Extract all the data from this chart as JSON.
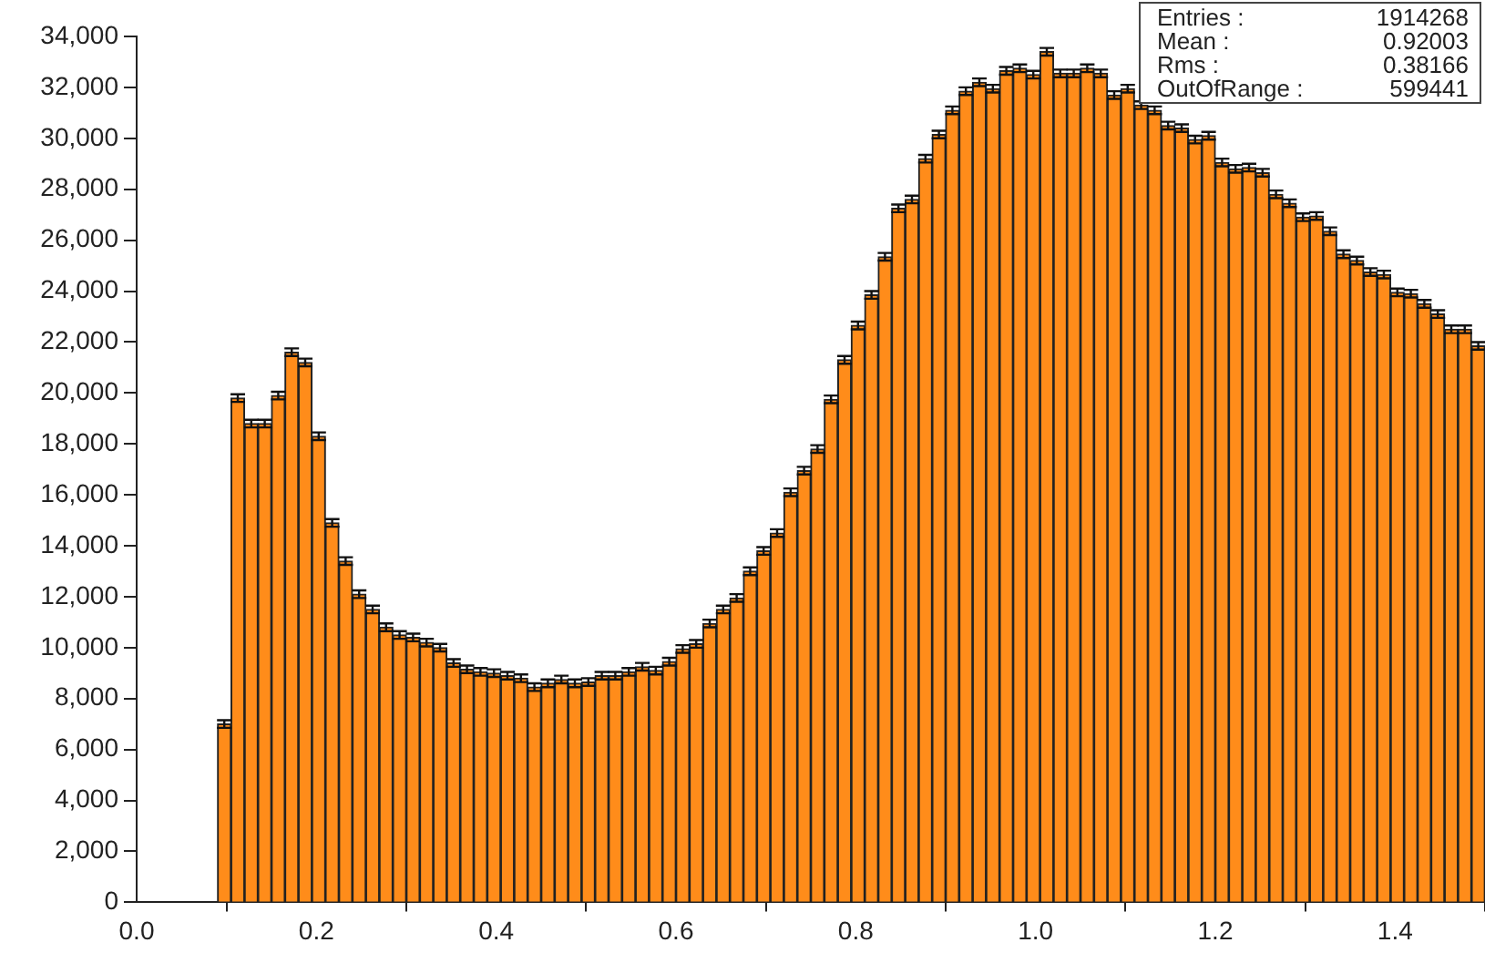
{
  "chart_data": {
    "type": "histogram",
    "color": "#ff8c1a",
    "bins": [
      0,
      0.015,
      0.03,
      0.045,
      0.06,
      0.075,
      0.09,
      0.105,
      0.12,
      0.135,
      0.15,
      0.165,
      0.18,
      0.195,
      0.21,
      0.225,
      0.24,
      0.255,
      0.27,
      0.285,
      0.3,
      0.315,
      0.33,
      0.345,
      0.36,
      0.375,
      0.39,
      0.405,
      0.42,
      0.435,
      0.45,
      0.465,
      0.48,
      0.495,
      0.51,
      0.525,
      0.54,
      0.555,
      0.57,
      0.585,
      0.6,
      0.615,
      0.63,
      0.645,
      0.66,
      0.675,
      0.69,
      0.705,
      0.72,
      0.735,
      0.75,
      0.765,
      0.78,
      0.795,
      0.81,
      0.825,
      0.84,
      0.855,
      0.87,
      0.885,
      0.9,
      0.915,
      0.93,
      0.945,
      0.96,
      0.975,
      0.99,
      1.005,
      1.02,
      1.035,
      1.05,
      1.065,
      1.08,
      1.095,
      1.11,
      1.125,
      1.14,
      1.155,
      1.17,
      1.185,
      1.2,
      1.215,
      1.23,
      1.245,
      1.26,
      1.275,
      1.29,
      1.305,
      1.32,
      1.335,
      1.35,
      1.365,
      1.38,
      1.395,
      1.41,
      1.425,
      1.44,
      1.455,
      1.47,
      1.485,
      1.5
    ],
    "values": [
      0,
      0,
      0,
      0,
      0,
      0,
      7000,
      19800,
      18800,
      18800,
      19900,
      21600,
      21200,
      18300,
      14900,
      13400,
      12100,
      11500,
      10800,
      10500,
      10400,
      10200,
      10000,
      9400,
      9150,
      9050,
      9000,
      8900,
      8800,
      8450,
      8600,
      8750,
      8600,
      8650,
      8900,
      8900,
      9050,
      9250,
      9100,
      9450,
      9950,
      10150,
      10950,
      11500,
      11950,
      13000,
      13800,
      14500,
      16100,
      16950,
      17800,
      19750,
      21300,
      22650,
      23850,
      25350,
      27250,
      27600,
      29200,
      30150,
      31100,
      31850,
      32200,
      31950,
      32650,
      32750,
      32500,
      33400,
      32550,
      32550,
      32750,
      32550,
      31700,
      31950,
      31300,
      31100,
      30500,
      30400,
      29950,
      30100,
      29050,
      28800,
      28850,
      28650,
      27800,
      27450,
      26900,
      26950,
      26350,
      25450,
      25200,
      24750,
      24650,
      23950,
      23900,
      23500,
      23100,
      22500,
      22500,
      21850
    ],
    "errors": [
      null,
      null,
      null,
      null,
      null,
      null,
      150,
      150,
      150,
      150,
      150,
      150,
      150,
      150,
      150,
      150,
      150,
      150,
      150,
      150,
      150,
      150,
      150,
      150,
      150,
      150,
      150,
      150,
      150,
      150,
      150,
      150,
      150,
      150,
      150,
      150,
      150,
      150,
      150,
      150,
      150,
      150,
      150,
      150,
      150,
      150,
      150,
      150,
      150,
      150,
      150,
      150,
      150,
      150,
      150,
      150,
      150,
      150,
      150,
      150,
      150,
      150,
      150,
      150,
      150,
      150,
      150,
      150,
      150,
      150,
      150,
      150,
      150,
      150,
      150,
      150,
      150,
      150,
      150,
      150,
      150,
      150,
      150,
      150,
      150,
      150,
      150,
      150,
      150,
      150,
      150,
      150,
      150,
      150,
      150,
      150,
      150,
      150,
      150,
      150
    ],
    "xlim": [
      0,
      1.5
    ],
    "xticks": [
      {
        "value": 0,
        "label": "0.0"
      },
      0.2,
      0.4,
      0.6,
      0.8,
      {
        "value": 1,
        "label": "1.0"
      },
      1.2,
      1.4
    ],
    "ylim": [
      0,
      34000
    ],
    "yticks": [
      {
        "value": 0,
        "label": "0"
      },
      {
        "value": 2000,
        "label": "2,000"
      },
      {
        "value": 4000,
        "label": "4,000"
      },
      {
        "value": 6000,
        "label": "6,000"
      },
      {
        "value": 8000,
        "label": "8,000"
      },
      {
        "value": 10000,
        "label": "10,000"
      },
      {
        "value": 12000,
        "label": "12,000"
      },
      {
        "value": 14000,
        "label": "14,000"
      },
      {
        "value": 16000,
        "label": "16,000"
      },
      {
        "value": 18000,
        "label": "18,000"
      },
      {
        "value": 20000,
        "label": "20,000"
      },
      {
        "value": 22000,
        "label": "22,000"
      },
      {
        "value": 24000,
        "label": "24,000"
      },
      {
        "value": 26000,
        "label": "26,000"
      },
      {
        "value": 28000,
        "label": "28,000"
      },
      {
        "value": 30000,
        "label": "30,000"
      },
      {
        "value": 32000,
        "label": "32,000"
      },
      {
        "value": 34000,
        "label": "34,000"
      }
    ],
    "annotations": [
      "Entries :",
      "1914268",
      "Mean :",
      "0.92003",
      "Rms :",
      "0.38166",
      "OutOfRange :",
      "599441"
    ]
  }
}
